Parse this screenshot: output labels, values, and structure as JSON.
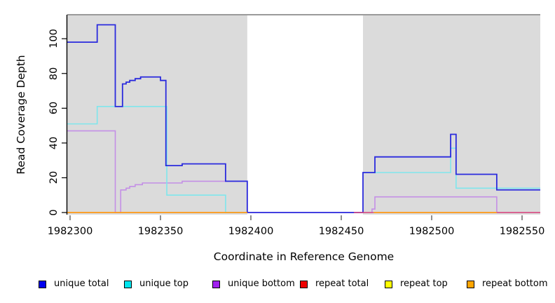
{
  "chart_data": {
    "type": "step-line",
    "title": "",
    "xlabel": "Coordinate in Reference Genome",
    "ylabel": "Read Coverage Depth",
    "x_ticks": [
      1982300,
      1982350,
      1982400,
      1982450,
      1982500,
      1982550
    ],
    "y_ticks": [
      0,
      20,
      40,
      60,
      80,
      100
    ],
    "x_range": [
      1982298.4,
      1982560.5
    ],
    "y_range": [
      0,
      110
    ],
    "grid": false,
    "legend_position": "bottom",
    "background": {
      "gray_region_color": "#DBDBDB",
      "top_border_color": "#9A9A9A",
      "gray_regions": [
        {
          "from": 1982298.4,
          "to": 1982398
        },
        {
          "from": 1982462,
          "to": 1982560.5
        }
      ]
    },
    "series": [
      {
        "name": "unique bottom",
        "color": "#C48FE6",
        "width": 1.6,
        "segments": [
          {
            "points": [
              [
                1982298.4,
                47
              ],
              [
                1982325,
                0
              ],
              [
                1982328,
                13
              ],
              [
                1982331,
                14
              ],
              [
                1982333,
                15
              ],
              [
                1982336,
                16
              ],
              [
                1982340,
                17
              ],
              [
                1982362,
                18
              ],
              [
                1982398,
                0
              ],
              [
                1982467,
                2
              ],
              [
                1982468.6,
                9
              ],
              [
                1982536,
                0
              ]
            ],
            "end": 1982560.5
          }
        ]
      },
      {
        "name": "unique top",
        "color": "#7FE6EC",
        "width": 1.6,
        "segments": [
          {
            "points": [
              [
                1982298.4,
                51
              ],
              [
                1982315,
                61
              ],
              [
                1982353.5,
                10
              ],
              [
                1982386,
                0
              ]
            ],
            "end": 1982398
          },
          {
            "points": [
              [
                1982462,
                23
              ],
              [
                1982510.5,
                37
              ],
              [
                1982513.5,
                14
              ]
            ],
            "end": 1982560.5
          }
        ]
      },
      {
        "name": "unique total",
        "color": "#2B2BDD",
        "width": 1.8,
        "segments": [
          {
            "points": [
              [
                1982298.4,
                98
              ],
              [
                1982315,
                108
              ],
              [
                1982325,
                61
              ],
              [
                1982329,
                74
              ],
              [
                1982331,
                75
              ],
              [
                1982333,
                76
              ],
              [
                1982336,
                77
              ],
              [
                1982339,
                78
              ],
              [
                1982350,
                76
              ],
              [
                1982353,
                27
              ],
              [
                1982362,
                28
              ],
              [
                1982386,
                18
              ],
              [
                1982398,
                0
              ],
              [
                1982462,
                23
              ],
              [
                1982468.6,
                32
              ],
              [
                1982510.5,
                45
              ],
              [
                1982513.5,
                22
              ],
              [
                1982536,
                13
              ]
            ],
            "end": 1982560.5
          }
        ]
      },
      {
        "name": "repeat total",
        "color": "#DC4A78",
        "width": 1.6,
        "segments": [
          {
            "points": [
              [
                1982457,
                0
              ]
            ],
            "end": 1982468
          },
          {
            "points": [
              [
                1982536,
                0
              ]
            ],
            "end": 1982560.5
          }
        ]
      },
      {
        "name": "repeat top",
        "color": "#FFFF00",
        "width": 1.6,
        "segments": []
      },
      {
        "name": "repeat bottom",
        "color": "#FF9914",
        "width": 1.8,
        "segments": [
          {
            "points": [
              [
                1982298.4,
                0
              ]
            ],
            "end": 1982398
          },
          {
            "points": [
              [
                1982468,
                0
              ]
            ],
            "end": 1982536
          }
        ]
      }
    ]
  },
  "axes": {
    "y_title": "Read Coverage Depth",
    "x_title": "Coordinate in Reference Genome",
    "x_tick_labels": [
      "1982300",
      "1982350",
      "1982400",
      "1982450",
      "1982500",
      "1982550"
    ],
    "y_tick_labels": [
      "0",
      "20",
      "40",
      "60",
      "80",
      "100"
    ]
  },
  "legend": {
    "items": [
      {
        "label": "unique total",
        "color": "#0000EE"
      },
      {
        "label": "unique top",
        "color": "#00E5EE"
      },
      {
        "label": "unique bottom",
        "color": "#A020F0"
      },
      {
        "label": "repeat total",
        "color": "#EE0000"
      },
      {
        "label": "repeat top",
        "color": "#FFFF00"
      },
      {
        "label": "repeat bottom",
        "color": "#FFA500"
      }
    ]
  }
}
